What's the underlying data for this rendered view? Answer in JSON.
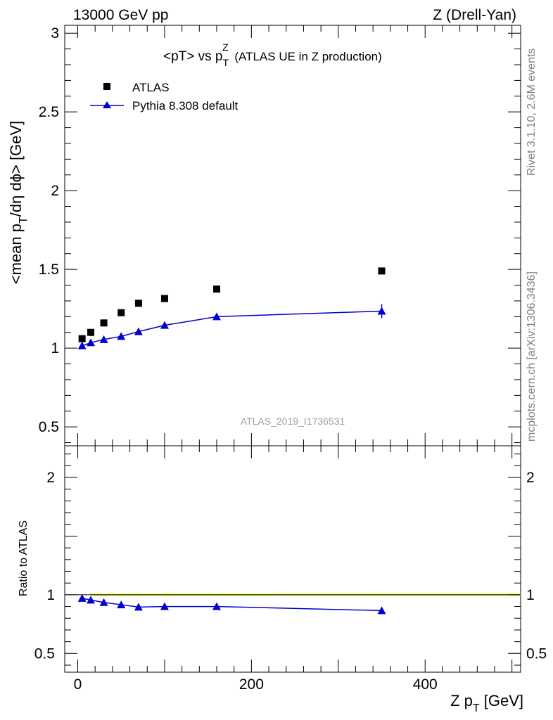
{
  "header": {
    "left": "13000 GeV pp",
    "right": "Z (Drell-Yan)"
  },
  "side_labels": {
    "upper": "Rivet 3.1.10,  2.6M events",
    "lower": "mcplots.cern.ch [arXiv:1306.3436]"
  },
  "watermark": "ATLAS_2019_I1736531",
  "colors": {
    "mc": "#0000cc",
    "data": "#000000",
    "band_outer": "#ffff77",
    "band_inner": "#aaee55",
    "sidetext": "#808080"
  },
  "chart_data": [
    {
      "id": "main",
      "type": "scatter",
      "title": "<pT> vs p_T^Z (ATLAS UE in Z production)",
      "ylabel": "<mean p_T/dη dφ> [GeV]",
      "xlim": [
        -15,
        510
      ],
      "ylim": [
        0.38,
        3.05
      ],
      "yticks": [
        0.5,
        1,
        1.5,
        2,
        2.5,
        3
      ],
      "series": [
        {
          "name": "ATLAS",
          "marker": "square",
          "x": [
            5,
            15,
            30,
            50,
            70,
            100,
            160,
            350
          ],
          "y": [
            1.06,
            1.1,
            1.16,
            1.225,
            1.285,
            1.315,
            1.375,
            1.49
          ]
        },
        {
          "name": "Pythia 8.308 default",
          "marker": "triangle",
          "x": [
            5,
            15,
            30,
            50,
            70,
            100,
            160,
            350
          ],
          "y": [
            1.015,
            1.035,
            1.055,
            1.075,
            1.105,
            1.145,
            1.2,
            1.235
          ],
          "yerr": [
            0.005,
            0.005,
            0.006,
            0.006,
            0.007,
            0.008,
            0.02,
            0.045
          ]
        }
      ]
    },
    {
      "id": "ratio",
      "type": "line",
      "ylabel": "Ratio to ATLAS",
      "xlabel": "Z p_T [GeV]",
      "xlim": [
        -15,
        510
      ],
      "ylim": [
        0.34,
        2.27
      ],
      "yticks": [
        0.5,
        1,
        2
      ],
      "xticks": [
        0,
        200,
        400
      ],
      "series": [
        {
          "name": "Pythia 8.308 default",
          "x": [
            5,
            15,
            30,
            50,
            70,
            100,
            160,
            350
          ],
          "y": [
            0.97,
            0.955,
            0.935,
            0.915,
            0.895,
            0.9,
            0.9,
            0.865
          ],
          "yerr": [
            0.006,
            0.006,
            0.007,
            0.007,
            0.008,
            0.008,
            0.01,
            0.02
          ]
        }
      ]
    }
  ]
}
